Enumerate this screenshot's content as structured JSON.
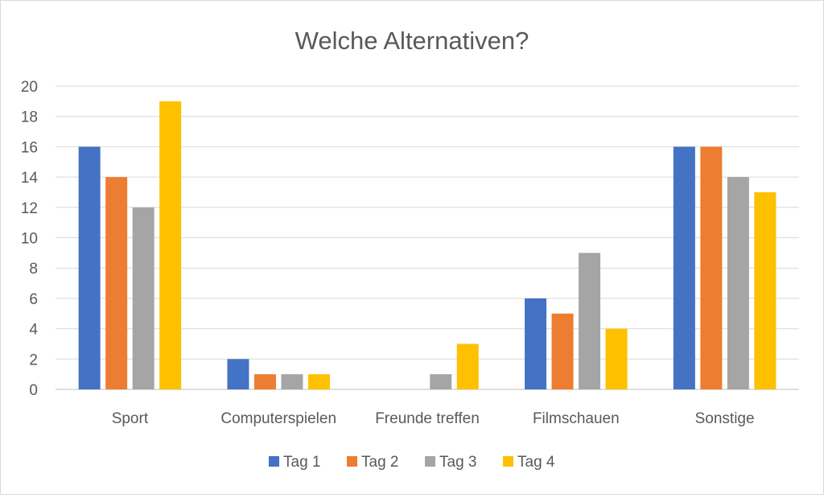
{
  "chart_data": {
    "type": "bar",
    "title": "Welche Alternativen?",
    "xlabel": "",
    "ylabel": "",
    "ylim": [
      0,
      20
    ],
    "ytick_step": 2,
    "grid": true,
    "legend_position": "bottom",
    "categories": [
      "Sport",
      "Computerspielen",
      "Freunde treffen",
      "Filmschauen",
      "Sonstige"
    ],
    "series": [
      {
        "name": "Tag 1",
        "color": "#4472c4",
        "values": [
          16,
          2,
          0,
          6,
          16
        ]
      },
      {
        "name": "Tag 2",
        "color": "#ed7d31",
        "values": [
          14,
          1,
          0,
          5,
          16
        ]
      },
      {
        "name": "Tag 3",
        "color": "#a5a5a5",
        "values": [
          12,
          1,
          1,
          9,
          14
        ]
      },
      {
        "name": "Tag 4",
        "color": "#ffc000",
        "values": [
          19,
          1,
          3,
          4,
          13
        ]
      }
    ]
  }
}
